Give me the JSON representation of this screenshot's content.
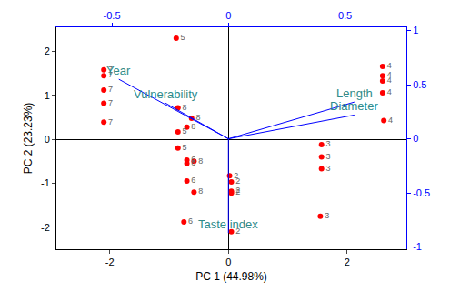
{
  "chart_data": {
    "type": "biplot",
    "x_label": "PC 1 (44.98%)",
    "y_label": "PC 2 (23.23%)",
    "xlim": [
      -2.9,
      3.0
    ],
    "xticks": [
      -2,
      0,
      2
    ],
    "ylim": [
      -2.5,
      2.55
    ],
    "yticks": [
      -2,
      -1,
      0,
      1,
      2
    ],
    "x2lim": [
      -0.738,
      0.763
    ],
    "x2ticks": [
      -0.5,
      0,
      0.5
    ],
    "y2lim": [
      -1.02,
      1.03
    ],
    "y2ticks": [
      -1,
      -0.5,
      0,
      0.5,
      1
    ],
    "grid": false,
    "points": {
      "color": "#ff0000",
      "x": [
        -2.1,
        -2.1,
        -2.1,
        -2.1,
        -2.1,
        -0.88,
        -0.85,
        -0.85,
        -0.85,
        -0.62,
        -0.7,
        -0.7,
        -0.7,
        -0.7,
        -0.75,
        -0.58,
        -0.58,
        0.02,
        0.05,
        0.05,
        0.05,
        0.05,
        1.57,
        1.57,
        1.57,
        1.55,
        2.6,
        2.6,
        2.6,
        2.6,
        2.62
      ],
      "y": [
        1.58,
        1.45,
        1.12,
        0.82,
        0.39,
        2.3,
        0.17,
        -0.2,
        0.72,
        0.48,
        0.28,
        -0.47,
        -0.55,
        -0.95,
        -1.88,
        -0.5,
        -1.2,
        -0.83,
        -0.97,
        -1.18,
        -1.22,
        -2.1,
        -0.12,
        -0.4,
        -0.67,
        -1.75,
        1.66,
        1.45,
        1.33,
        1.06,
        0.43
      ],
      "labels": [
        "7",
        "7",
        "7",
        "7",
        "7",
        "5",
        "5",
        "5",
        "8",
        "8",
        "8",
        "6",
        "6",
        "6",
        "6",
        "8",
        "8",
        "2",
        "2",
        "2",
        "2",
        "2",
        "3",
        "3",
        "3",
        "3",
        "4",
        "4",
        "4",
        "4",
        "4"
      ]
    },
    "loadings": {
      "color": "#0000ff",
      "label_color": "#2e8b8b",
      "x": [
        -0.47,
        -0.27,
        0.54,
        0.54,
        0.0
      ],
      "y": [
        0.55,
        0.33,
        0.34,
        0.22,
        -0.87
      ],
      "labels": [
        "Year",
        "Vulnerability",
        "Length",
        "Diameter",
        "Taste index"
      ]
    }
  }
}
